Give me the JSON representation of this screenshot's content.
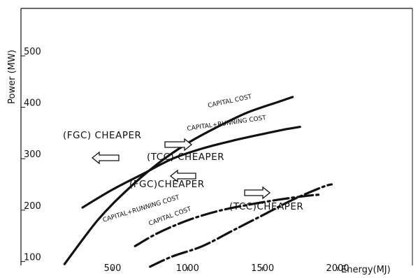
{
  "chart_data": {
    "type": "line",
    "title": "",
    "xlabel": "Energy (MJ)",
    "ylabel": "Power (MW)",
    "xlim": [
      0,
      2200
    ],
    "ylim": [
      0,
      570
    ],
    "x_ticks": [
      500,
      1000,
      1500,
      2000
    ],
    "y_ticks": [
      100,
      200,
      300,
      400,
      500
    ],
    "grid": false,
    "legend": "none",
    "series": [
      {
        "key": "upper_capital",
        "label": "CAPITAL COST",
        "style": "solid",
        "points": [
          [
            180,
            95
          ],
          [
            400,
            180
          ],
          [
            600,
            240
          ],
          [
            800,
            290
          ],
          [
            1000,
            330
          ],
          [
            1200,
            362
          ],
          [
            1400,
            390
          ],
          [
            1600,
            410
          ],
          [
            1700,
            420
          ]
        ]
      },
      {
        "key": "upper_capital_running",
        "label": "CAPITAL+RUNNING COST",
        "style": "solid",
        "points": [
          [
            300,
            205
          ],
          [
            500,
            240
          ],
          [
            700,
            270
          ],
          [
            900,
            300
          ],
          [
            1100,
            320
          ],
          [
            1300,
            335
          ],
          [
            1500,
            348
          ],
          [
            1650,
            357
          ],
          [
            1750,
            362
          ]
        ]
      },
      {
        "key": "lower_capital_running",
        "label": "CAPITAL+RUNNING COST",
        "style": "dash-dot",
        "points": [
          [
            650,
            130
          ],
          [
            800,
            155
          ],
          [
            1000,
            180
          ],
          [
            1200,
            198
          ],
          [
            1400,
            210
          ],
          [
            1600,
            220
          ],
          [
            1800,
            228
          ],
          [
            1880,
            230
          ]
        ]
      },
      {
        "key": "lower_capital",
        "label": "CAPITAL COST",
        "style": "dash-dot",
        "points": [
          [
            750,
            90
          ],
          [
            900,
            110
          ],
          [
            1100,
            130
          ],
          [
            1300,
            160
          ],
          [
            1500,
            190
          ],
          [
            1700,
            220
          ],
          [
            1900,
            245
          ],
          [
            1960,
            250
          ]
        ]
      }
    ],
    "annotations": {
      "fgc_cheaper_upper": "(FGC) CHEAPER",
      "tcc_cheaper_upper": "(TCC) CHEAPER",
      "fgc_cheaper_lower": "(FGC)CHEAPER",
      "tcc_cheaper_lower": "(TCC)CHEAPER",
      "upper_capital_label": "CAPITAL COST",
      "upper_capital_running_label": "CAPITAL+RUNNING COST",
      "lower_capital_running_label": "CAPITAL+RUNNING COST",
      "lower_capital_label": "CAPITAL COST"
    },
    "axis_text": {
      "x_name": "Energy(MJ)",
      "y_name": "Power (MW)"
    }
  }
}
